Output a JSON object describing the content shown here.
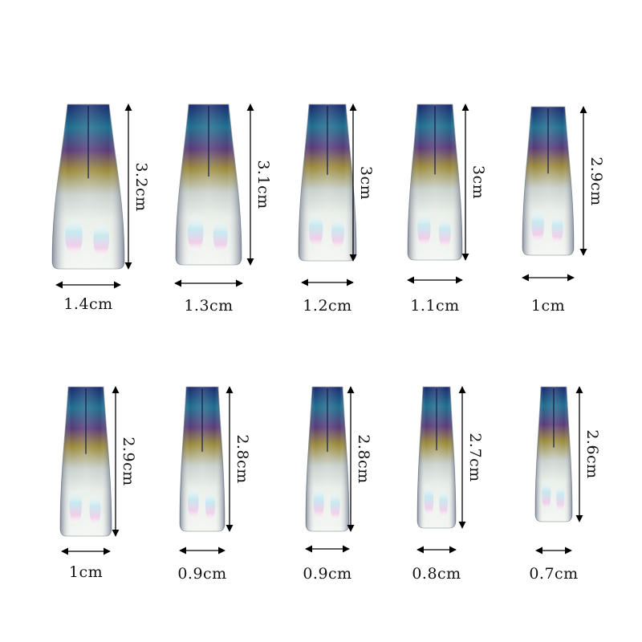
{
  "colors": {
    "chrome_dark": "#1c2a6e",
    "chrome_teal": "#1f6f8f",
    "chrome_purple": "#5a3a78",
    "chrome_gold": "#9b8a3a",
    "milky": "#e8eee8",
    "opal_pink": "#f2c8e8",
    "opal_cyan": "#bfe8f2",
    "arrow": "#000000"
  },
  "nails": [
    {
      "width_label": "1.4cm",
      "length_label": "3.2cm"
    },
    {
      "width_label": "1.3cm",
      "length_label": "3.1cm"
    },
    {
      "width_label": "1.2cm",
      "length_label": "3cm"
    },
    {
      "width_label": "1.1cm",
      "length_label": "3cm"
    },
    {
      "width_label": "1cm",
      "length_label": "2.9cm"
    },
    {
      "width_label": "1cm",
      "length_label": "2.9cm"
    },
    {
      "width_label": "0.9cm",
      "length_label": "2.8cm"
    },
    {
      "width_label": "0.9cm",
      "length_label": "2.8cm"
    },
    {
      "width_label": "0.8cm",
      "length_label": "2.7cm"
    },
    {
      "width_label": "0.7cm",
      "length_label": "2.6cm"
    }
  ]
}
